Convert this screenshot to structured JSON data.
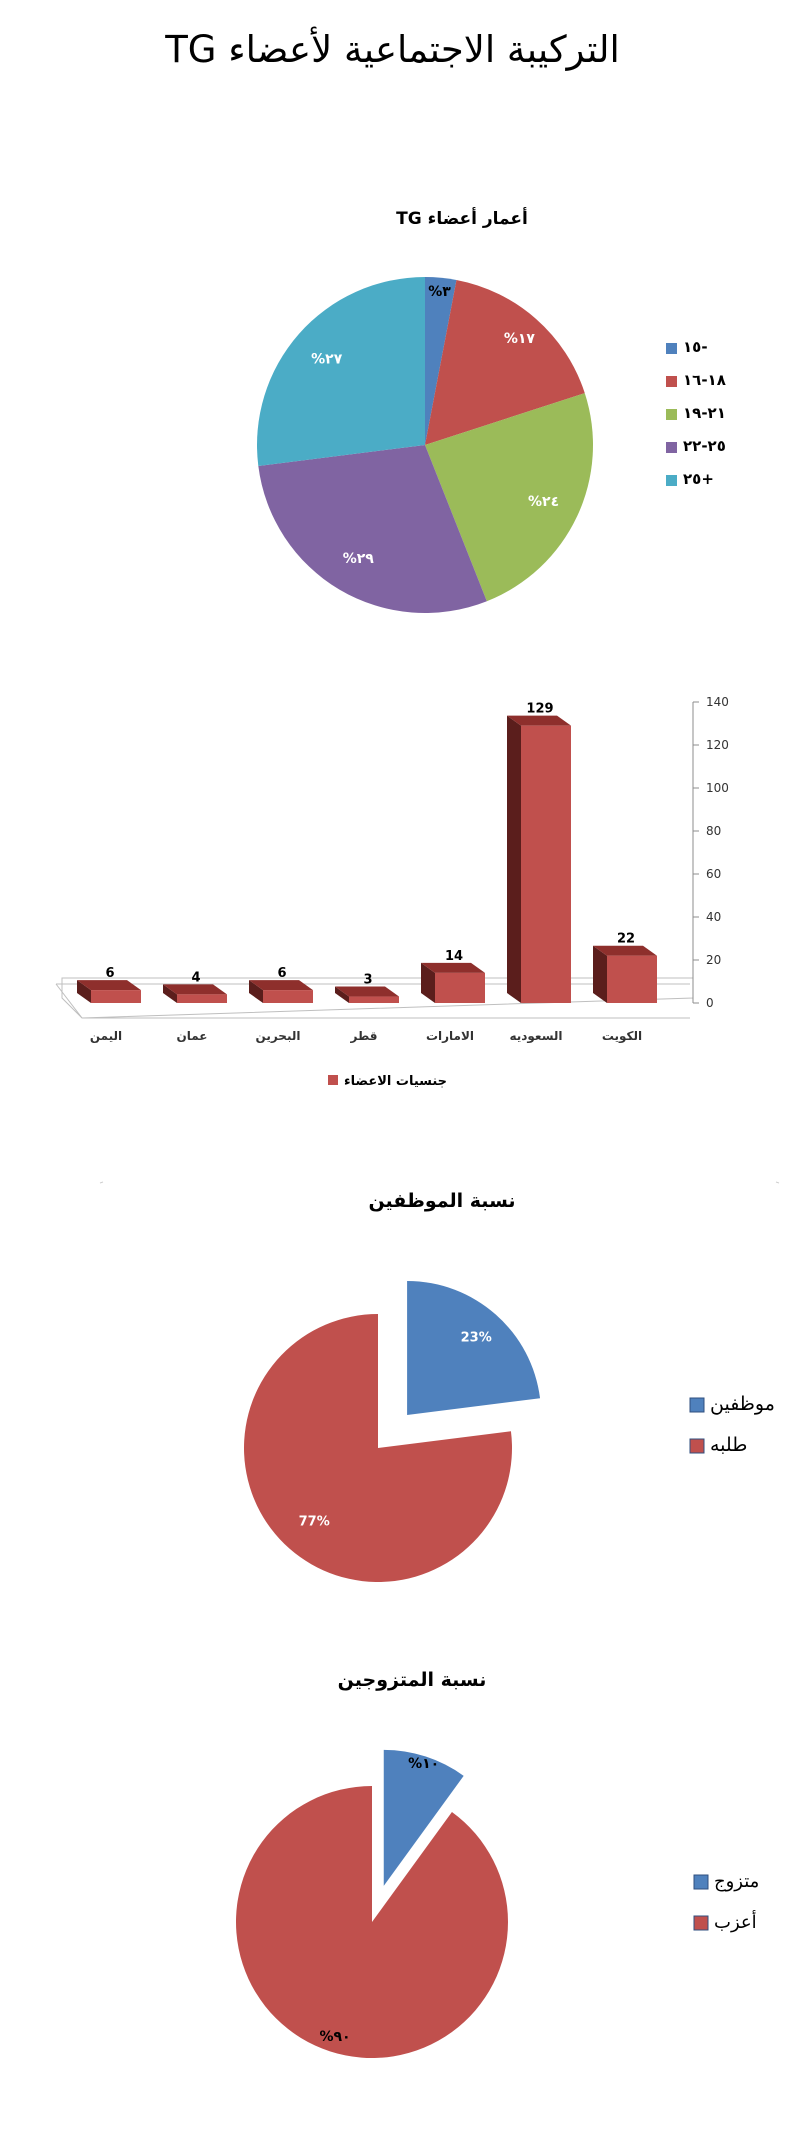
{
  "page_title": "التركيبة الاجتماعية لأعضاء TG",
  "chart_data": [
    {
      "type": "pie",
      "title": "أعمار أعضاء TG",
      "categories": [
        "١٥-",
        "١٨-١٦",
        "٢١-١٩",
        "٢٥-٢٢",
        "٢٥+"
      ],
      "values": [
        3,
        17,
        24,
        29,
        27
      ],
      "labels": [
        "%٣",
        "%١٧",
        "%٢٤",
        "%٢٩",
        "%٢٧"
      ],
      "colors": [
        "#4f81bd",
        "#c0504d",
        "#9bbb59",
        "#8064a2",
        "#4bacc6"
      ],
      "legend": "right"
    },
    {
      "type": "bar",
      "categories": [
        "الكويت",
        "السعوديه",
        "الامارات",
        "قطر",
        "البحرين",
        "عمان",
        "اليمن"
      ],
      "values": [
        22,
        129,
        14,
        3,
        6,
        4,
        6
      ],
      "series": [
        {
          "name": "جنسيات الاعضاء",
          "values": [
            22,
            129,
            14,
            3,
            6,
            4,
            6
          ]
        }
      ],
      "y_ticks": [
        "0",
        "20",
        "40",
        "60",
        "80",
        "100",
        "120",
        "140"
      ],
      "ylim": [
        0,
        140
      ],
      "color": "#c0504d",
      "legend": "bottom"
    },
    {
      "type": "pie",
      "title": "نسبة الموظفين",
      "categories": [
        "موظفين",
        "طلبه"
      ],
      "values": [
        23,
        77
      ],
      "labels": [
        "23%",
        "77%"
      ],
      "colors": [
        "#4f81bd",
        "#c0504d"
      ],
      "exploded": true,
      "legend": "right"
    },
    {
      "type": "pie",
      "title": "نسبة المتزوجين",
      "categories": [
        "متزوج",
        "أعزب"
      ],
      "values": [
        10,
        90
      ],
      "labels": [
        "%١٠",
        "%٩٠"
      ],
      "colors": [
        "#4f81bd",
        "#c0504d"
      ],
      "exploded": true,
      "legend": "right"
    }
  ]
}
